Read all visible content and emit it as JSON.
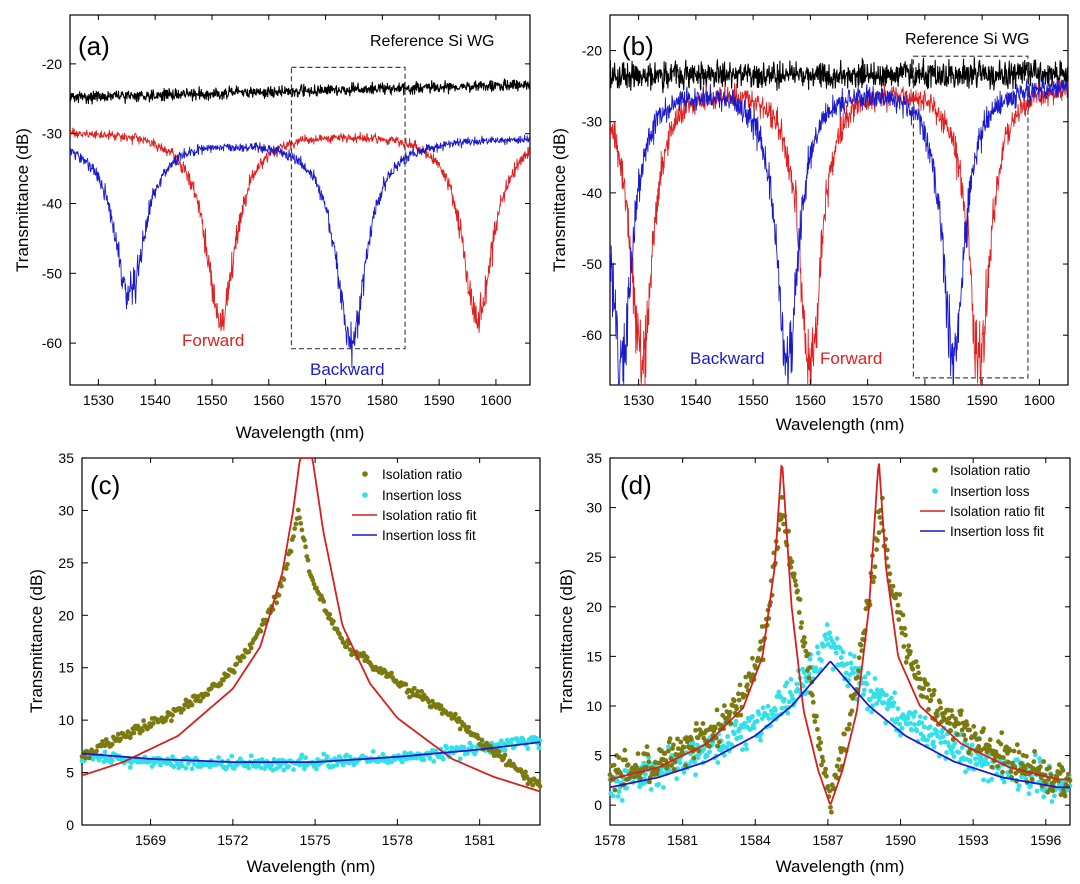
{
  "chart_data": [
    {
      "panel_label": "(a)",
      "type": "line",
      "xlabel": "Wavelength (nm)",
      "ylabel": "Transmittance (dB)",
      "xlim": [
        1525,
        1606
      ],
      "ylim": [
        -66,
        -13
      ],
      "xticks": [
        1530,
        1540,
        1550,
        1560,
        1570,
        1580,
        1590,
        1600
      ],
      "yticks": [
        -60,
        -50,
        -40,
        -30,
        -20
      ],
      "annotations": [
        {
          "text": "Reference Si WG",
          "color": "#000000"
        },
        {
          "text": "Forward",
          "color": "#e02020"
        },
        {
          "text": "Backward",
          "color": "#1a1acc"
        }
      ],
      "highlight_box": {
        "x": [
          1564,
          1584
        ],
        "y": [
          -60.8,
          -20.5
        ]
      },
      "series": [
        {
          "key": "reference",
          "color": "#000000",
          "baseline_start": -24.8,
          "baseline_end": -23.0,
          "noise": 0.7,
          "dips": []
        },
        {
          "key": "forward",
          "color": "#e02020",
          "baseline_start": -29.5,
          "baseline_end": -29.5,
          "noise": 0.5,
          "dips": [
            {
              "center": 1551.5,
              "depth": -56.5
            },
            {
              "center": 1596.8,
              "depth": -57
            }
          ]
        },
        {
          "key": "backward",
          "color": "#1a1acc",
          "baseline_start": -30.5,
          "baseline_end": -30.5,
          "noise": 0.5,
          "dips": [
            {
              "center": 1535.5,
              "depth": -53
            },
            {
              "center": 1574.5,
              "depth": -60
            }
          ]
        }
      ]
    },
    {
      "panel_label": "(b)",
      "type": "line",
      "xlabel": "Wavelength (nm)",
      "ylabel": "Transmittance (dB)",
      "xlim": [
        1525,
        1605
      ],
      "ylim": [
        -67,
        -15
      ],
      "xticks": [
        1530,
        1540,
        1550,
        1560,
        1570,
        1580,
        1590,
        1600
      ],
      "yticks": [
        -60,
        -50,
        -40,
        -30,
        -20
      ],
      "annotations": [
        {
          "text": "Reference Si WG",
          "color": "#000000"
        },
        {
          "text": "Backward",
          "color": "#1a1acc"
        },
        {
          "text": "Forward",
          "color": "#e02020"
        }
      ],
      "highlight_box": {
        "x": [
          1578,
          1598
        ],
        "y": [
          -66,
          -20.8
        ]
      },
      "series": [
        {
          "key": "reference",
          "color": "#000000",
          "baseline_start": -23.5,
          "baseline_end": -23.2,
          "noise": 1.6,
          "dips": []
        },
        {
          "key": "forward",
          "color": "#e02020",
          "baseline_start": -24.5,
          "baseline_end": -24.5,
          "noise": 1.2,
          "dips": [
            {
              "center": 1530.5,
              "depth": -64
            },
            {
              "center": 1560,
              "depth": -64
            },
            {
              "center": 1589.5,
              "depth": -64
            }
          ]
        },
        {
          "key": "backward",
          "color": "#1a1acc",
          "baseline_start": -24.5,
          "baseline_end": -24.5,
          "noise": 1.2,
          "dips": [
            {
              "center": 1527,
              "depth": -64
            },
            {
              "center": 1556,
              "depth": -64
            },
            {
              "center": 1585,
              "depth": -63
            }
          ]
        }
      ]
    },
    {
      "panel_label": "(c)",
      "type": "scatter",
      "xlabel": "Wavelength (nm)",
      "ylabel": "Transmittance (dB)",
      "xlim": [
        1566.5,
        1583.2
      ],
      "ylim": [
        0,
        35
      ],
      "xticks": [
        1569,
        1572,
        1575,
        1578,
        1581
      ],
      "yticks": [
        0,
        5,
        10,
        15,
        20,
        25,
        30,
        35
      ],
      "legend": {
        "position": "top-right",
        "entries": [
          {
            "label": "Isolation ratio",
            "marker": "dot",
            "color": "#7a7a10"
          },
          {
            "label": "Insertion loss",
            "marker": "dot",
            "color": "#33e0e8"
          },
          {
            "label": "Isolation ratio fit",
            "marker": "line",
            "color": "#d42020"
          },
          {
            "label": "Insertion loss fit",
            "marker": "line",
            "color": "#1a1acc"
          }
        ]
      },
      "isolation_ratio": [
        [
          1566.6,
          6.6
        ],
        [
          1567.5,
          7.8
        ],
        [
          1568.5,
          9
        ],
        [
          1569.5,
          10.3
        ],
        [
          1570.5,
          11.6
        ],
        [
          1571.5,
          13.5
        ],
        [
          1572.5,
          16.5
        ],
        [
          1573.2,
          19.5
        ],
        [
          1573.7,
          22.5
        ],
        [
          1574.1,
          26
        ],
        [
          1574.4,
          30
        ],
        [
          1574.8,
          24
        ],
        [
          1575.3,
          21
        ],
        [
          1576,
          17.5
        ],
        [
          1577,
          15.5
        ],
        [
          1578,
          13.5
        ],
        [
          1579,
          12
        ],
        [
          1580,
          10.5
        ],
        [
          1581,
          8
        ],
        [
          1582,
          6
        ],
        [
          1583,
          4
        ]
      ],
      "insertion_loss": [
        [
          1566.6,
          6.6
        ],
        [
          1569,
          6
        ],
        [
          1572,
          5.8
        ],
        [
          1575,
          5.9
        ],
        [
          1578,
          6.3
        ],
        [
          1580,
          7
        ],
        [
          1583,
          8
        ]
      ],
      "isolation_ratio_fit": [
        [
          1566.6,
          4.8
        ],
        [
          1568,
          6
        ],
        [
          1570,
          8.5
        ],
        [
          1572,
          13
        ],
        [
          1573,
          17
        ],
        [
          1573.8,
          24
        ],
        [
          1574.2,
          30
        ],
        [
          1574.45,
          35
        ],
        [
          1574.9,
          35
        ],
        [
          1575.3,
          28
        ],
        [
          1576,
          19
        ],
        [
          1577,
          13.5
        ],
        [
          1578,
          10.2
        ],
        [
          1580,
          6.3
        ],
        [
          1581.5,
          4.6
        ],
        [
          1583.2,
          3.2
        ]
      ],
      "insertion_loss_fit": [
        [
          1566.6,
          6.8
        ],
        [
          1569,
          6.3
        ],
        [
          1572,
          6
        ],
        [
          1575,
          6
        ],
        [
          1578,
          6.5
        ],
        [
          1581,
          7.2
        ],
        [
          1583.2,
          7.9
        ]
      ]
    },
    {
      "panel_label": "(d)",
      "type": "scatter",
      "xlabel": "Wavelength (nm)",
      "ylabel": "Transmittance (dB)",
      "xlim": [
        1578,
        1597
      ],
      "ylim": [
        -2,
        35
      ],
      "xticks": [
        1578,
        1581,
        1584,
        1587,
        1590,
        1593,
        1596
      ],
      "yticks": [
        0,
        5,
        10,
        15,
        20,
        25,
        30,
        35
      ],
      "legend": {
        "position": "top-right",
        "entries": [
          {
            "label": "Isolation ratio",
            "marker": "dot",
            "color": "#7a7a10"
          },
          {
            "label": "Insertion loss",
            "marker": "dot",
            "color": "#33e0e8"
          },
          {
            "label": "Isolation ratio fit",
            "marker": "line",
            "color": "#d42020"
          },
          {
            "label": "Insertion loss fit",
            "marker": "line",
            "color": "#1a1acc"
          }
        ]
      },
      "isolation_ratio": [
        [
          1579,
          3.5
        ],
        [
          1581,
          5.5
        ],
        [
          1582.5,
          8
        ],
        [
          1583.5,
          11
        ],
        [
          1584.3,
          16
        ],
        [
          1584.8,
          24
        ],
        [
          1585.1,
          30
        ],
        [
          1585.8,
          20
        ],
        [
          1586.5,
          8
        ],
        [
          1587.1,
          0.2
        ],
        [
          1587.8,
          8
        ],
        [
          1588.5,
          17
        ],
        [
          1589.2,
          30
        ],
        [
          1589.6,
          22
        ],
        [
          1590.5,
          14
        ],
        [
          1591.5,
          10
        ],
        [
          1593,
          6.5
        ],
        [
          1595,
          4
        ],
        [
          1596.5,
          2.5
        ]
      ],
      "insertion_loss": [
        [
          1578,
          2
        ],
        [
          1580,
          3.5
        ],
        [
          1582,
          5.5
        ],
        [
          1584,
          8
        ],
        [
          1585.5,
          11
        ],
        [
          1586.5,
          14
        ],
        [
          1587,
          17
        ],
        [
          1587.5,
          15
        ],
        [
          1588.5,
          12
        ],
        [
          1590,
          9
        ],
        [
          1592,
          6
        ],
        [
          1594,
          4
        ],
        [
          1596.5,
          2
        ]
      ],
      "isolation_ratio_fit": [
        [
          1578,
          2.6
        ],
        [
          1580,
          3.8
        ],
        [
          1582,
          6.2
        ],
        [
          1583.5,
          9.8
        ],
        [
          1584.3,
          15
        ],
        [
          1584.8,
          24
        ],
        [
          1585.1,
          35
        ],
        [
          1585.5,
          20
        ],
        [
          1586,
          9.5
        ],
        [
          1586.6,
          3.5
        ],
        [
          1587.1,
          0
        ],
        [
          1587.6,
          3.5
        ],
        [
          1588.2,
          9.5
        ],
        [
          1588.7,
          20
        ],
        [
          1589.1,
          35
        ],
        [
          1589.4,
          24
        ],
        [
          1589.9,
          15
        ],
        [
          1590.8,
          10
        ],
        [
          1592.5,
          6.2
        ],
        [
          1594.5,
          3.8
        ],
        [
          1596.5,
          2.6
        ]
      ],
      "insertion_loss_fit": [
        [
          1578,
          1.8
        ],
        [
          1580,
          2.8
        ],
        [
          1582,
          4.4
        ],
        [
          1584,
          7
        ],
        [
          1585.5,
          10
        ],
        [
          1586.5,
          12.8
        ],
        [
          1587.1,
          14.5
        ],
        [
          1587.7,
          12.8
        ],
        [
          1588.7,
          10
        ],
        [
          1590.2,
          7
        ],
        [
          1592.2,
          4.4
        ],
        [
          1594.2,
          2.8
        ],
        [
          1596.5,
          1.8
        ]
      ]
    }
  ]
}
